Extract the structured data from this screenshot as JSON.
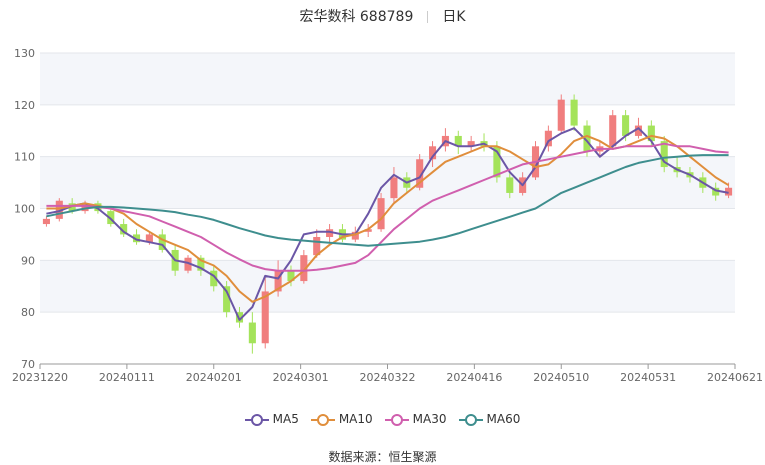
{
  "header": {
    "stock": "宏华数科 688789",
    "period": "日K"
  },
  "source_label": "数据来源：",
  "source_name": "恒生聚源",
  "legend": [
    {
      "label": "MA5",
      "color": "#6B56A6"
    },
    {
      "label": "MA10",
      "color": "#E08E3C"
    },
    {
      "label": "MA30",
      "color": "#D05FAE"
    },
    {
      "label": "MA60",
      "color": "#3E8E8E"
    }
  ],
  "colors": {
    "up": "#F07E7E",
    "down": "#A4E35A",
    "band": "#F4F6FA",
    "grid": "#E3E6EB",
    "axis": "#999999"
  },
  "chart_data": {
    "type": "candlestick",
    "ylim": [
      70,
      130
    ],
    "y_ticks": [
      70,
      80,
      90,
      100,
      110,
      120,
      130
    ],
    "x_tick_labels": [
      "20231220",
      "20240111",
      "20240201",
      "20240301",
      "20240322",
      "20240416",
      "20240510",
      "20240531",
      "20240621"
    ],
    "series": [
      {
        "name": "MA5",
        "values": [
          99,
          99.5,
          100.5,
          101,
          100,
          98,
          95.5,
          94,
          93.5,
          93,
          90,
          89.5,
          88.5,
          87,
          84,
          78.5,
          81,
          87,
          86.5,
          90,
          95,
          95.5,
          95.5,
          95,
          95,
          99,
          104,
          106.5,
          105,
          106,
          110,
          113,
          112,
          112,
          112.5,
          111,
          107,
          104.5,
          108,
          113,
          114.5,
          115.5,
          113,
          110,
          112,
          114,
          115.5,
          113,
          109,
          107.5,
          106.5,
          105,
          103.5,
          103
        ]
      },
      {
        "name": "MA10",
        "values": [
          100,
          100,
          100.5,
          101,
          100.5,
          100,
          99,
          97,
          95.5,
          94,
          93,
          92,
          90,
          89,
          87,
          84,
          82,
          83,
          84.5,
          86,
          88,
          91,
          93,
          94.5,
          95,
          96,
          98,
          101,
          103,
          105,
          107,
          109,
          110,
          111,
          112,
          112,
          111,
          109.5,
          108,
          108.5,
          110.5,
          113,
          114,
          113,
          111.5,
          112,
          113,
          114,
          113.5,
          112,
          110,
          108,
          106,
          104.5
        ]
      },
      {
        "name": "MA30",
        "values": [
          100.5,
          100.5,
          100.5,
          100.5,
          100.3,
          100,
          99.5,
          99,
          98.5,
          97.5,
          96.5,
          95.5,
          94.5,
          93,
          91.5,
          90.2,
          89,
          88.3,
          88,
          88,
          88,
          88.2,
          88.5,
          89,
          89.5,
          91,
          93.5,
          96,
          98,
          100,
          101.5,
          102.5,
          103.5,
          104.5,
          105.5,
          106.5,
          107.5,
          108.5,
          109,
          109.5,
          110,
          110.5,
          111,
          111.5,
          111.5,
          112,
          112,
          112,
          112.5,
          112,
          112,
          111.5,
          111,
          110.8
        ]
      },
      {
        "name": "MA60",
        "values": [
          98.5,
          99,
          99.5,
          100,
          100.3,
          100.3,
          100.2,
          100,
          99.8,
          99.6,
          99.3,
          98.8,
          98.4,
          97.8,
          97,
          96.2,
          95.5,
          94.8,
          94.3,
          94,
          93.8,
          93.6,
          93.4,
          93.2,
          93,
          92.8,
          93,
          93.2,
          93.4,
          93.6,
          94,
          94.5,
          95.2,
          96,
          96.8,
          97.6,
          98.4,
          99.2,
          100,
          101.5,
          103,
          104,
          105,
          106,
          107,
          108,
          108.8,
          109.3,
          109.8,
          110,
          110.2,
          110.3,
          110.3,
          110.3
        ]
      }
    ],
    "candles": [
      [
        97,
        98,
        96.5,
        98.5
      ],
      [
        98,
        101.5,
        97.5,
        102
      ],
      [
        101,
        99.5,
        99,
        102
      ],
      [
        99.5,
        101,
        99,
        101.5
      ],
      [
        101,
        99.5,
        99,
        101.5
      ],
      [
        99.5,
        97,
        96.5,
        100
      ],
      [
        97,
        95,
        94.5,
        98
      ],
      [
        95,
        93.5,
        93,
        96
      ],
      [
        93.5,
        95,
        93,
        95.5
      ],
      [
        95,
        92,
        91.5,
        96
      ],
      [
        92,
        88,
        87,
        93
      ],
      [
        88,
        90.5,
        87.5,
        91
      ],
      [
        90.5,
        88,
        87,
        91
      ],
      [
        88,
        85,
        84,
        89
      ],
      [
        85,
        80,
        79,
        86
      ],
      [
        80,
        78,
        77,
        81
      ],
      [
        78,
        74,
        72,
        80
      ],
      [
        74,
        84,
        73,
        87
      ],
      [
        84,
        88,
        83,
        90
      ],
      [
        88,
        86,
        85,
        89
      ],
      [
        86,
        91,
        85.5,
        92
      ],
      [
        91,
        94.5,
        90.5,
        96
      ],
      [
        94.5,
        96,
        93.5,
        97
      ],
      [
        96,
        94,
        93.5,
        97
      ],
      [
        94,
        95.5,
        93.5,
        96.5
      ],
      [
        95.5,
        96,
        94.5,
        97
      ],
      [
        96,
        102,
        95.5,
        103
      ],
      [
        102,
        106,
        101,
        108
      ],
      [
        106,
        104,
        103,
        107
      ],
      [
        104,
        109.5,
        103.5,
        110.5
      ],
      [
        109.5,
        112,
        108,
        113
      ],
      [
        112,
        114,
        111,
        115.5
      ],
      [
        114,
        112,
        110.5,
        115
      ],
      [
        112,
        113,
        111,
        114
      ],
      [
        113,
        112,
        111,
        114.5
      ],
      [
        112,
        106,
        105,
        113
      ],
      [
        106,
        103,
        102,
        107
      ],
      [
        103,
        106,
        102.5,
        107
      ],
      [
        106,
        112,
        105.5,
        113
      ],
      [
        112,
        115,
        111,
        116
      ],
      [
        115,
        121,
        114.5,
        122
      ],
      [
        121,
        116,
        115,
        122
      ],
      [
        116,
        111,
        110,
        117
      ],
      [
        111,
        112,
        110,
        113
      ],
      [
        112,
        118,
        111.5,
        119
      ],
      [
        118,
        114,
        113,
        119
      ],
      [
        114,
        116,
        113.5,
        117.5
      ],
      [
        116,
        113,
        112,
        117
      ],
      [
        113,
        108,
        107,
        114
      ],
      [
        108,
        107,
        106,
        110
      ],
      [
        107,
        106,
        105,
        108
      ],
      [
        106,
        104,
        103,
        107
      ],
      [
        104,
        102.5,
        101.5,
        105
      ],
      [
        102.5,
        104,
        102,
        105
      ]
    ]
  }
}
